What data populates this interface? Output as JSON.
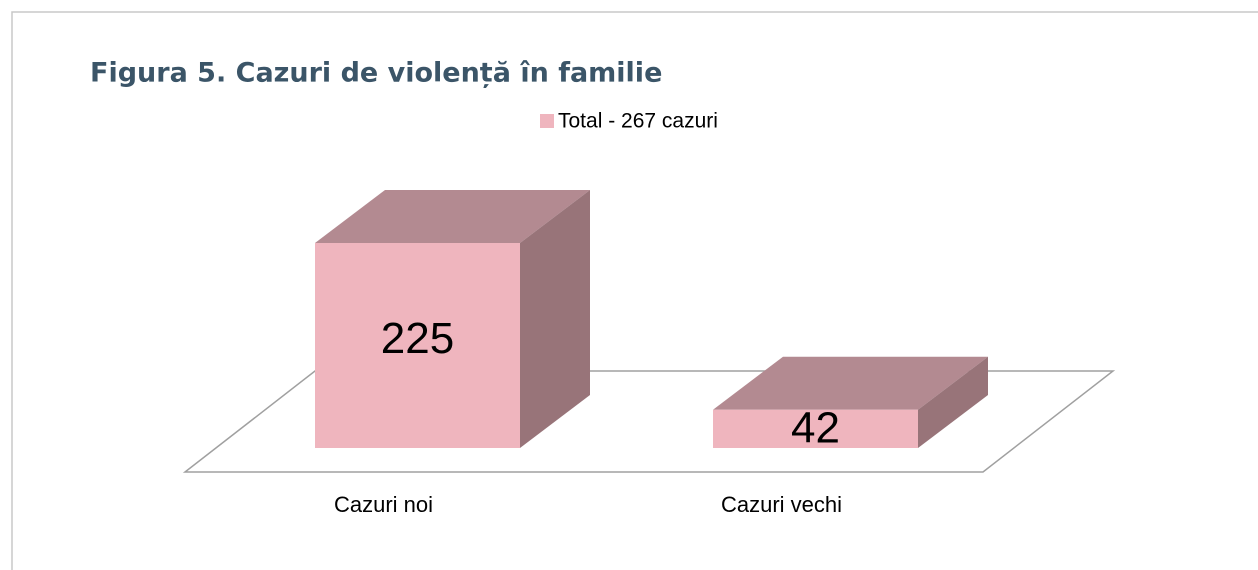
{
  "chart_data": {
    "type": "bar",
    "title": "Figura 5.  Cazuri de violență în familie",
    "categories": [
      "Cazuri noi",
      "Cazuri vechi"
    ],
    "series": [
      {
        "name": "Total - 267 cazuri",
        "color": "#efb5be",
        "values": [
          225,
          42
        ]
      }
    ]
  }
}
